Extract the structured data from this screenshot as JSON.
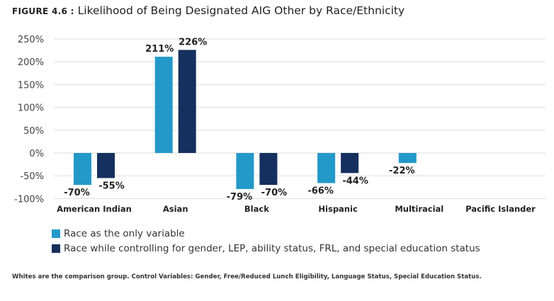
{
  "title": {
    "label": "FIGURE 4.6 :",
    "text": "Likelihood of Being Designated AIG Other by Race/Ethnicity"
  },
  "chart_data": {
    "type": "bar",
    "categories": [
      "American Indian",
      "Asian",
      "Black",
      "Hispanic",
      "Multiracial",
      "Pacific Islander"
    ],
    "series": [
      {
        "name": "Race as the only variable",
        "color": "#2399c9",
        "values": [
          -70,
          211,
          -79,
          -66,
          -22,
          null
        ],
        "labels": [
          "-70%",
          "211%",
          "-79%",
          "-66%",
          "-22%",
          null
        ]
      },
      {
        "name": "Race while controlling for gender, LEP, ability status, FRL, and special education status",
        "color": "#15305e",
        "values": [
          -55,
          226,
          -70,
          -44,
          null,
          null
        ],
        "labels": [
          "-55%",
          "226%",
          "-70%",
          "-44%",
          null,
          null
        ]
      }
    ],
    "ylim": [
      -100,
      250
    ],
    "yticks": [
      "250%",
      "200%",
      "150%",
      "100%",
      "50%",
      "0%",
      "-50%",
      "-100%"
    ],
    "ytick_values": [
      250,
      200,
      150,
      100,
      50,
      0,
      -50,
      -100
    ],
    "grid": true,
    "legend": "bottom-left"
  },
  "note": "Whites are the comparison group. Control Variables: Gender, Free/Reduced Lunch Eligibility, Language Status, Special Education Status."
}
